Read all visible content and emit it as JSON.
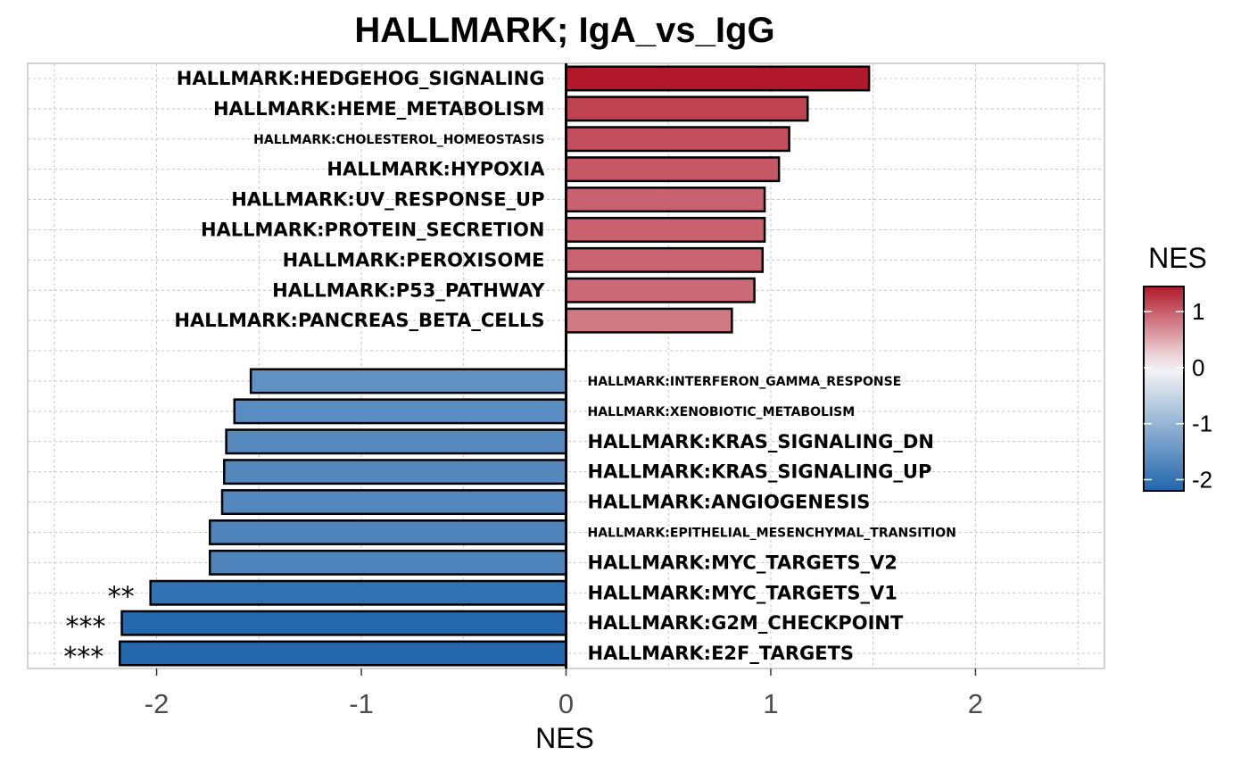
{
  "chart_data": {
    "type": "bar",
    "orientation": "horizontal",
    "title": "HALLMARK; IgA_vs_IgG",
    "xlabel": "NES",
    "ylabel": "",
    "xlim": [
      -2.63,
      2.63
    ],
    "xticks": [
      -2,
      -1,
      0,
      1,
      2
    ],
    "xtick_labels": [
      "-2",
      "-1",
      "0",
      "1",
      "2"
    ],
    "grid": true,
    "legend": {
      "title": "NES",
      "position": "right",
      "type": "colorbar",
      "range": [
        -2.2,
        1.45
      ],
      "ticks": [
        1,
        0,
        -1,
        -2
      ],
      "tick_labels": [
        "1",
        "0",
        "-1",
        "-2"
      ],
      "low_color": "#2166ac",
      "mid_color": "#f7f7f7",
      "high_color": "#b2182b"
    },
    "categories": [
      "HALLMARK:HEDGEHOG_SIGNALING",
      "HALLMARK:HEME_METABOLISM",
      "HALLMARK:CHOLESTEROL_HOMEOSTASIS",
      "HALLMARK:HYPOXIA",
      "HALLMARK:UV_RESPONSE_UP",
      "HALLMARK:PROTEIN_SECRETION",
      "HALLMARK:PEROXISOME",
      "HALLMARK:P53_PATHWAY",
      "HALLMARK:PANCREAS_BETA_CELLS",
      "",
      "HALLMARK:INTERFERON_GAMMA_RESPONSE",
      "HALLMARK:XENOBIOTIC_METABOLISM",
      "HALLMARK:KRAS_SIGNALING_DN",
      "HALLMARK:KRAS_SIGNALING_UP",
      "HALLMARK:ANGIOGENESIS",
      "HALLMARK:EPITHELIAL_MESENCHYMAL_TRANSITION",
      "HALLMARK:MYC_TARGETS_V2",
      "HALLMARK:MYC_TARGETS_V1",
      "HALLMARK:G2M_CHECKPOINT",
      "HALLMARK:E2F_TARGETS"
    ],
    "values": [
      1.48,
      1.18,
      1.09,
      1.04,
      0.97,
      0.97,
      0.96,
      0.92,
      0.81,
      null,
      -1.54,
      -1.62,
      -1.66,
      -1.67,
      -1.68,
      -1.74,
      -1.74,
      -2.03,
      -2.17,
      -2.18
    ],
    "significance": [
      "",
      "",
      "",
      "",
      "",
      "",
      "",
      "",
      "",
      "",
      "",
      "",
      "",
      "",
      "",
      "",
      "",
      "**",
      "***",
      "***"
    ],
    "label_size": [
      "large",
      "large",
      "small",
      "large",
      "large",
      "large",
      "large",
      "large",
      "large",
      "",
      "small",
      "small",
      "large",
      "large",
      "large",
      "small",
      "large",
      "large",
      "large",
      "large"
    ]
  }
}
